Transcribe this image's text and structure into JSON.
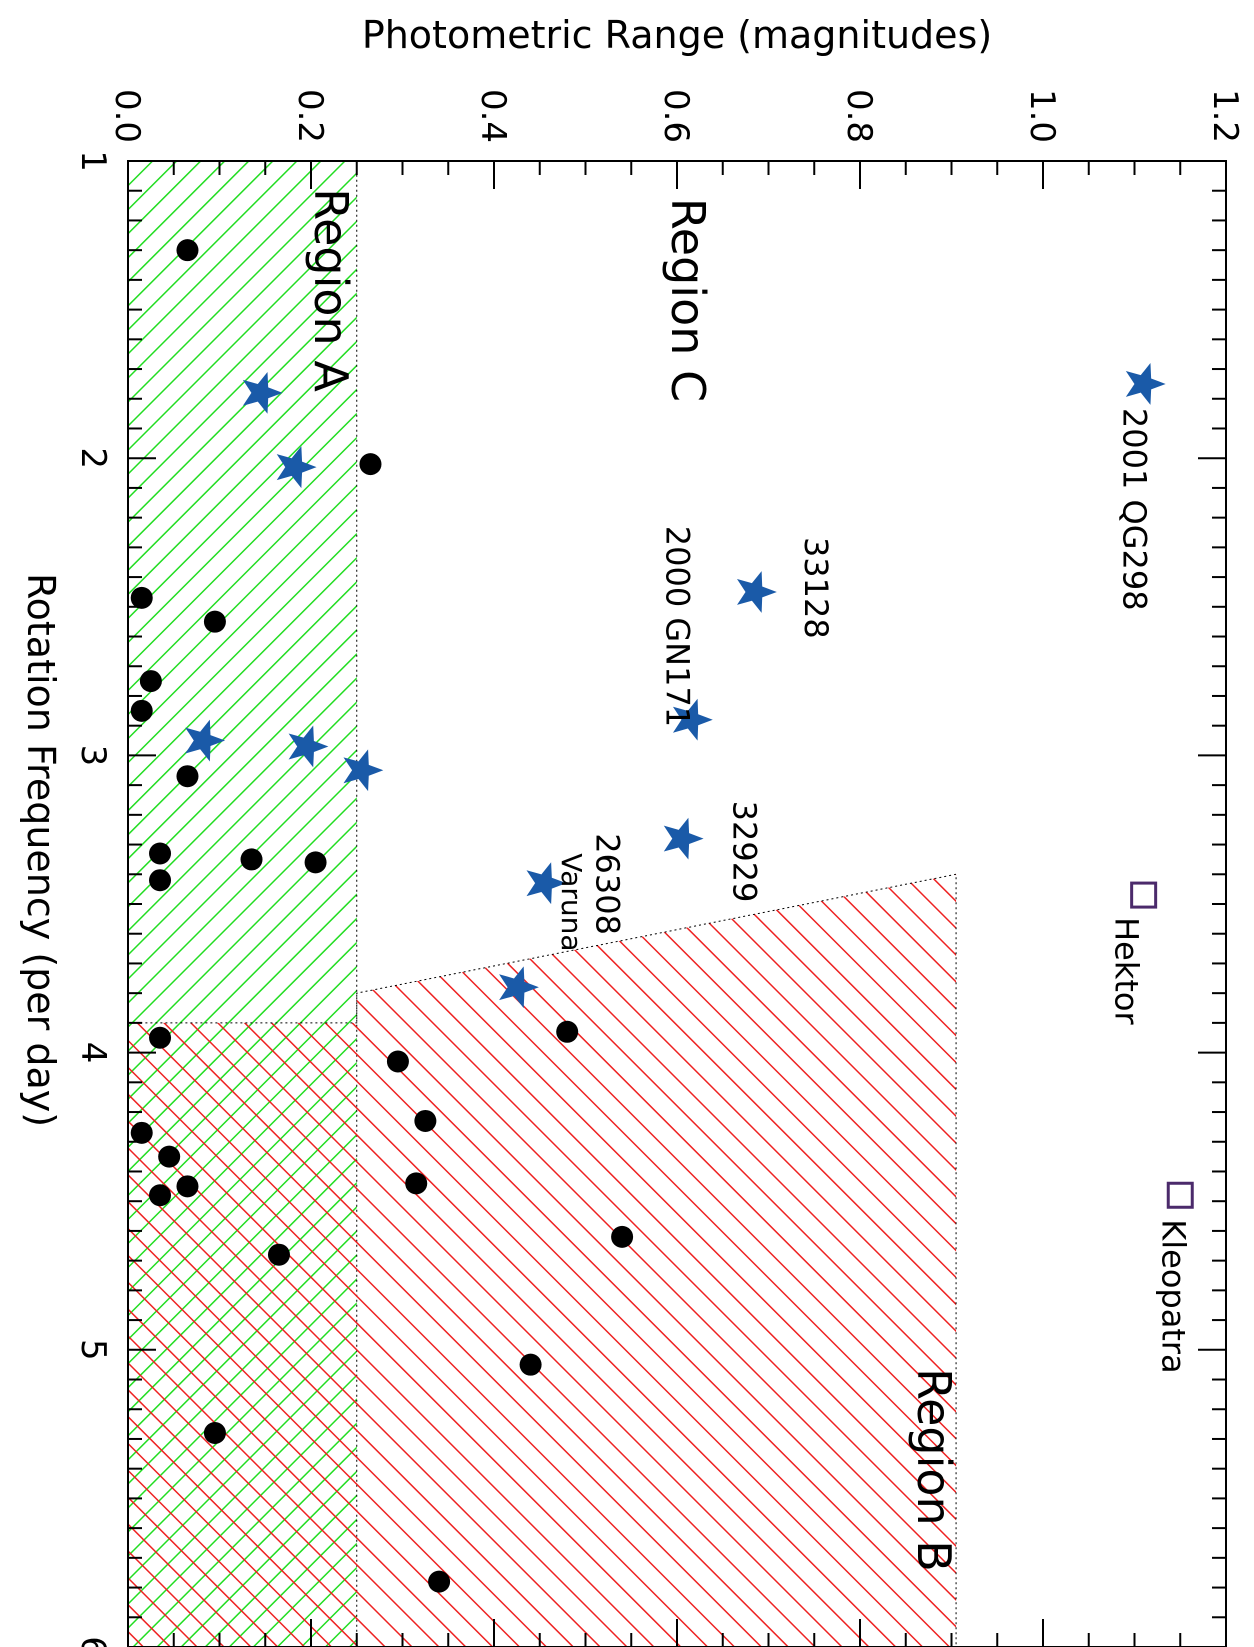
{
  "chart_data": {
    "type": "scatter",
    "orientation": "rotated-90",
    "xlabel": "Rotation Frequency (per day)",
    "ylabel": "Photometric Range (magnitudes)",
    "xlim": [
      1,
      6
    ],
    "ylim": [
      0.0,
      1.2
    ],
    "x_ticks": [
      "1",
      "2",
      "3",
      "4",
      "5",
      "6"
    ],
    "y_ticks": [
      "0.0",
      "0.2",
      "0.4",
      "0.6",
      "0.8",
      "1.0",
      "1.2"
    ],
    "x_tick_values": [
      1,
      2,
      3,
      4,
      5,
      6
    ],
    "y_tick_values": [
      0.0,
      0.2,
      0.4,
      0.6,
      0.8,
      1.0,
      1.2
    ],
    "grid": false,
    "regions": [
      {
        "name": "Region A",
        "label": "Region A",
        "color": "#22dd22",
        "polygon": [
          [
            1,
            0.0
          ],
          [
            6,
            0.0
          ],
          [
            6,
            0.25
          ],
          [
            1,
            0.25
          ]
        ]
      },
      {
        "name": "Region B",
        "label": "Region B",
        "color": "#ee2222",
        "polygon": [
          [
            3.9,
            0.0
          ],
          [
            6,
            0.0
          ],
          [
            6,
            0.905
          ],
          [
            3.4,
            0.905
          ],
          [
            3.8,
            0.25
          ],
          [
            3.9,
            0.25
          ]
        ]
      },
      {
        "name": "Region C",
        "label": "Region C",
        "color": "#ffffff",
        "polygon": []
      }
    ],
    "series": [
      {
        "marker": "circle",
        "color": "#000000",
        "points": [
          [
            1.3,
            0.065
          ],
          [
            2.02,
            0.265
          ],
          [
            2.47,
            0.015
          ],
          [
            2.55,
            0.095
          ],
          [
            2.75,
            0.025
          ],
          [
            2.85,
            0.015
          ],
          [
            3.07,
            0.065
          ],
          [
            3.33,
            0.035
          ],
          [
            3.35,
            0.135
          ],
          [
            3.36,
            0.205
          ],
          [
            3.42,
            0.035
          ],
          [
            3.95,
            0.035
          ],
          [
            3.93,
            0.48
          ],
          [
            4.03,
            0.295
          ],
          [
            4.23,
            0.325
          ],
          [
            4.27,
            0.015
          ],
          [
            4.35,
            0.045
          ],
          [
            4.45,
            0.065
          ],
          [
            4.44,
            0.315
          ],
          [
            4.48,
            0.035
          ],
          [
            4.62,
            0.54
          ],
          [
            4.68,
            0.165
          ],
          [
            5.05,
            0.44
          ],
          [
            5.28,
            0.095
          ],
          [
            5.78,
            0.34
          ]
        ]
      },
      {
        "marker": "star",
        "color": "#1a5aa8",
        "points": [
          [
            1.78,
            0.145
          ],
          [
            2.03,
            0.182
          ],
          [
            2.95,
            0.082
          ],
          [
            2.97,
            0.195
          ],
          [
            3.05,
            0.255
          ],
          [
            1.75,
            1.11
          ],
          [
            2.45,
            0.685
          ],
          [
            2.88,
            0.615
          ],
          [
            3.28,
            0.605
          ],
          [
            3.43,
            0.455
          ],
          [
            3.78,
            0.425
          ]
        ]
      },
      {
        "marker": "square",
        "color": "#4b2a6b",
        "points": [
          [
            3.47,
            1.11
          ],
          [
            4.48,
            1.15
          ]
        ]
      }
    ],
    "annotations": [
      {
        "text": "2001 QG298",
        "x": 1.75,
        "y": 1.11
      },
      {
        "text": "33128",
        "x": 2.45,
        "y": 0.685
      },
      {
        "text": "2000 GN171",
        "x": 2.88,
        "y": 0.615
      },
      {
        "text": "32929",
        "x": 3.28,
        "y": 0.605
      },
      {
        "text": "26308",
        "x": 3.43,
        "y": 0.455
      },
      {
        "text": "Varuna",
        "x": 3.78,
        "y": 0.425
      },
      {
        "text": "Hektor",
        "x": 3.47,
        "y": 1.11
      },
      {
        "text": "Kleopatra",
        "x": 4.48,
        "y": 1.15
      }
    ]
  }
}
